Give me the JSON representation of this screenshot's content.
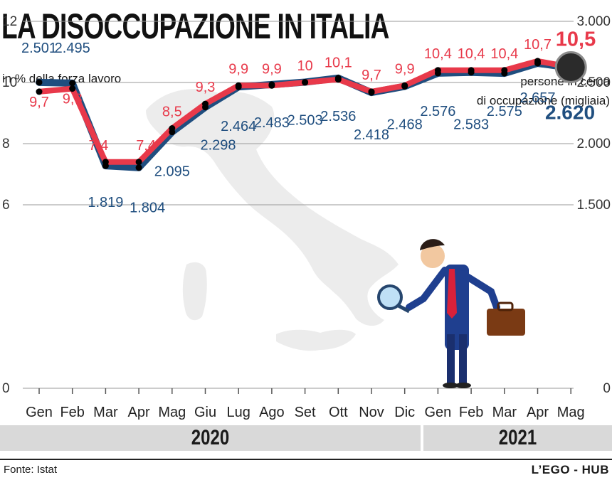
{
  "header": {
    "title": "LA DISOCCUPAZIONE IN ITALIA",
    "left_unit": "in % della forza lavoro",
    "right_unit_line1": "persone in cerca",
    "right_unit_line2": "di occupazione (migliaia)"
  },
  "chart_data": {
    "type": "line",
    "categories": [
      "Gen",
      "Feb",
      "Mar",
      "Apr",
      "Mag",
      "Giu",
      "Lug",
      "Ago",
      "Set",
      "Ott",
      "Nov",
      "Dic",
      "Gen",
      "Feb",
      "Mar",
      "Apr",
      "Mag"
    ],
    "groups": [
      {
        "label": "2020",
        "from": 0,
        "to": 11
      },
      {
        "label": "2021",
        "from": 12,
        "to": 16
      }
    ],
    "left_axis": {
      "ylim": [
        0,
        12
      ],
      "ticks": [
        "0",
        "6",
        "8",
        "10",
        "12"
      ],
      "tick_values": [
        0,
        6,
        8,
        10,
        12
      ]
    },
    "right_axis": {
      "ylim": [
        0,
        3000
      ],
      "ticks": [
        "0",
        "1.500",
        "2.000",
        "2.500",
        "3.000"
      ],
      "tick_values": [
        0,
        1500,
        2000,
        2500,
        3000
      ]
    },
    "grid": true,
    "series": [
      {
        "axis": "left",
        "color": "#e8394a",
        "values": [
          9.7,
          9.8,
          7.4,
          7.4,
          8.5,
          9.3,
          9.9,
          9.9,
          10,
          10.1,
          9.7,
          9.9,
          10.4,
          10.4,
          10.4,
          10.7,
          10.5
        ],
        "labels": [
          "9,7",
          "9,8",
          "7,4",
          "7,4",
          "8,5",
          "9,3",
          "9,9",
          "9,9",
          "10",
          "10,1",
          "9,7",
          "9,9",
          "10,4",
          "10,4",
          "10,4",
          "10,7",
          "10,5"
        ]
      },
      {
        "axis": "right",
        "color": "#1f4e7f",
        "values": [
          2501,
          2495,
          1819,
          1804,
          2095,
          2298,
          2464,
          2483,
          2503,
          2536,
          2418,
          2468,
          2576,
          2583,
          2575,
          2657,
          2620
        ],
        "labels": [
          "2.501",
          "2.495",
          "1.819",
          "1.804",
          "2.095",
          "2.298",
          "2.464",
          "2.483",
          "2.503",
          "2.536",
          "2.418",
          "2.468",
          "2.576",
          "2.583",
          "2.575",
          "2.657",
          "2.620"
        ]
      }
    ]
  },
  "footer": {
    "source": "Fonte: Istat",
    "brand": "L’EGO - HUB"
  }
}
